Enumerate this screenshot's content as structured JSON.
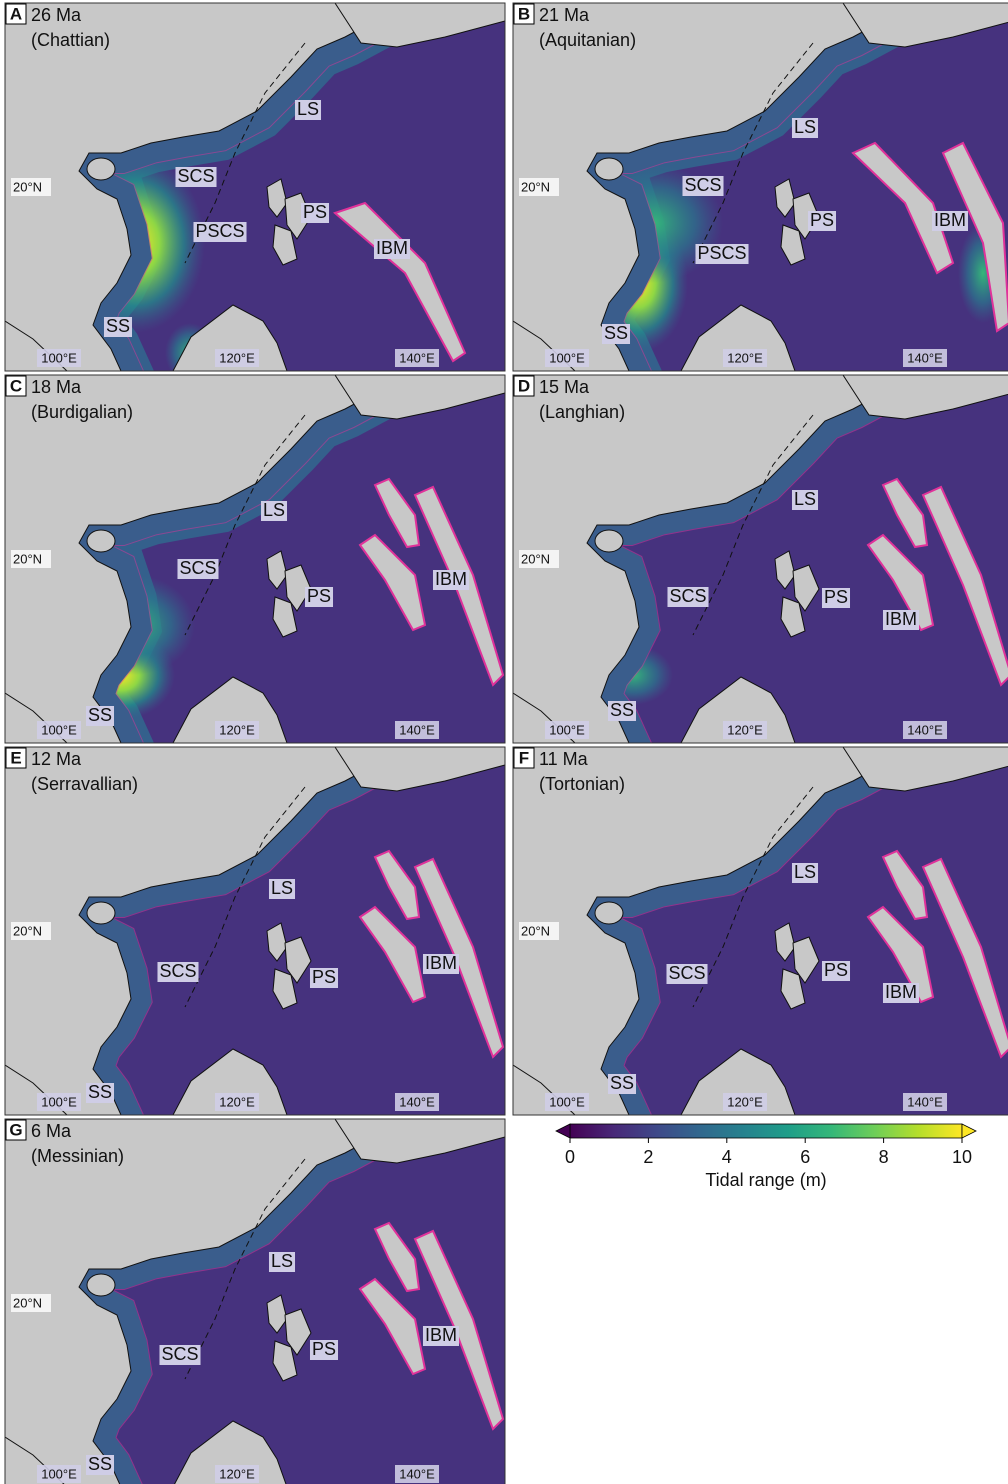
{
  "panels": [
    {
      "letter": "A",
      "age": "26 Ma",
      "stage": "(Chattian)",
      "labels": [
        "LS",
        "SCS",
        "PSCS",
        "PS",
        "IBM",
        "SS"
      ]
    },
    {
      "letter": "B",
      "age": "21 Ma",
      "stage": "(Aquitanian)",
      "labels": [
        "LS",
        "SCS",
        "PS",
        "IBM",
        "PSCS",
        "SS"
      ]
    },
    {
      "letter": "C",
      "age": "18 Ma",
      "stage": "(Burdigalian)",
      "labels": [
        "LS",
        "SCS",
        "PS",
        "IBM",
        "SS"
      ]
    },
    {
      "letter": "D",
      "age": "15 Ma",
      "stage": "(Langhian)",
      "labels": [
        "LS",
        "SCS",
        "PS",
        "IBM",
        "SS"
      ]
    },
    {
      "letter": "E",
      "age": "12 Ma",
      "stage": "(Serravallian)",
      "labels": [
        "LS",
        "SCS",
        "PS",
        "IBM",
        "SS"
      ]
    },
    {
      "letter": "F",
      "age": "11 Ma",
      "stage": "(Tortonian)",
      "labels": [
        "LS",
        "SCS",
        "PS",
        "IBM",
        "SS"
      ]
    },
    {
      "letter": "G",
      "age": "6 Ma",
      "stage": "(Messinian)",
      "labels": [
        "LS",
        "SCS",
        "PS",
        "IBM",
        "SS"
      ]
    }
  ],
  "grid_labels": {
    "lat": "20°N",
    "lon": [
      "100°E",
      "120°E",
      "140°E"
    ]
  },
  "colorbar": {
    "label": "Tidal range (m)",
    "lim": [
      0,
      10
    ],
    "ticks": [
      0,
      2,
      4,
      6,
      8,
      10
    ],
    "extend": "both",
    "colormap": [
      "#440154",
      "#482878",
      "#3e4989",
      "#31688e",
      "#26828e",
      "#1f9e89",
      "#35b779",
      "#6ece58",
      "#b5de2b",
      "#fde725"
    ]
  }
}
